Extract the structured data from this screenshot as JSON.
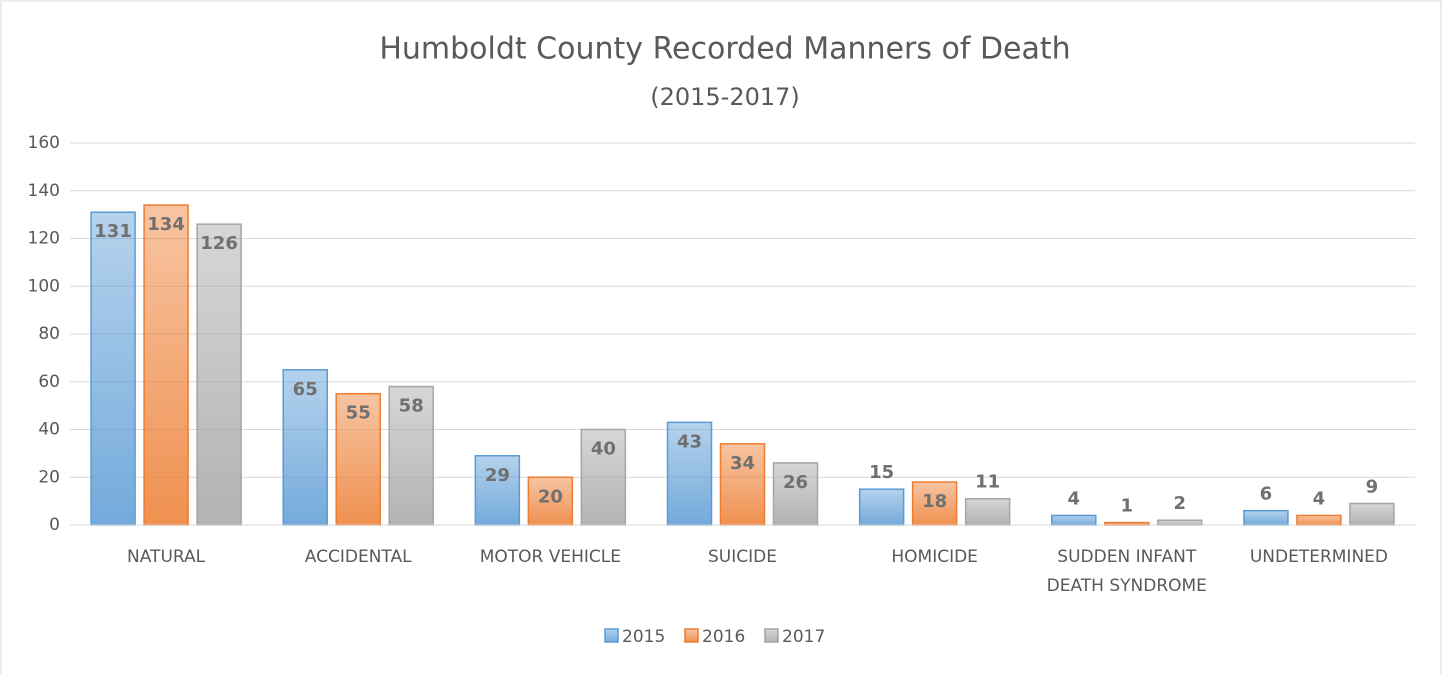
{
  "chart_data": {
    "type": "bar",
    "title": "Humboldt County Recorded Manners of Death",
    "subtitle": "(2015-2017)",
    "categories": [
      "NATURAL",
      "ACCIDENTAL",
      "MOTOR VEHICLE",
      "SUICIDE",
      "HOMICIDE",
      "SUDDEN INFANT DEATH SYNDROME",
      "UNDETERMINED"
    ],
    "series": [
      {
        "name": "2015",
        "color": "#5b9bd5",
        "values": [
          131,
          65,
          29,
          43,
          15,
          4,
          6
        ]
      },
      {
        "name": "2016",
        "color": "#ed7d31",
        "values": [
          134,
          55,
          20,
          34,
          18,
          1,
          4
        ]
      },
      {
        "name": "2017",
        "color": "#a5a5a5",
        "values": [
          126,
          58,
          40,
          26,
          11,
          2,
          9
        ]
      }
    ],
    "ylim": [
      0,
      160
    ],
    "yticks": [
      0,
      20,
      40,
      60,
      80,
      100,
      120,
      140,
      160
    ],
    "grid": true,
    "legend": "bottom"
  }
}
